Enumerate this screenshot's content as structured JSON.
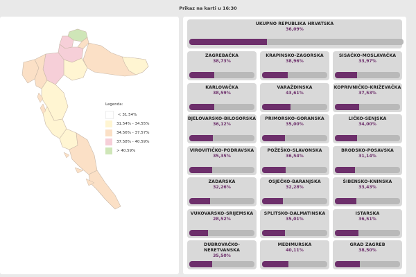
{
  "header": {
    "title": "Prikaz na karti u 16:30"
  },
  "legend": {
    "title": "Legenda:",
    "items": [
      {
        "label": "< 31.54%",
        "color": "#ffffff"
      },
      {
        "label": "31.54% - 34.55%",
        "color": "#fff5d2"
      },
      {
        "label": "34.56% - 37.57%",
        "color": "#fbe0c6"
      },
      {
        "label": "37.58% - 40.59%",
        "color": "#f6cfd8"
      },
      {
        "label": "> 40.59%",
        "color": "#cfe6b8"
      }
    ]
  },
  "total": {
    "name": "UKUPNO REPUBLIKA HRVATSKA",
    "value": "36,09%",
    "percent": 36.09
  },
  "counties": [
    {
      "name": "ZAGREBAČKA",
      "value": "38,73%",
      "percent": 38.73
    },
    {
      "name": "KRAPINSKO-ZAGORSKA",
      "value": "38,96%",
      "percent": 38.96
    },
    {
      "name": "SISAČKO-MOSLAVAČKA",
      "value": "33,97%",
      "percent": 33.97
    },
    {
      "name": "KARLOVAČKA",
      "value": "38,59%",
      "percent": 38.59
    },
    {
      "name": "VARAŽDINSKA",
      "value": "43,61%",
      "percent": 43.61
    },
    {
      "name": "KOPRIVNIČKO-KRIŽEVAČKA",
      "value": "37,53%",
      "percent": 37.53
    },
    {
      "name": "BJELOVARSKO-BILOGORSKA",
      "value": "36,12%",
      "percent": 36.12
    },
    {
      "name": "PRIMORSKO-GORANSKA",
      "value": "35,00%",
      "percent": 35.0
    },
    {
      "name": "LIČKO-SENJSKA",
      "value": "34,00%",
      "percent": 34.0
    },
    {
      "name": "VIROVITIČKO-PODRAVSKA",
      "value": "35,35%",
      "percent": 35.35
    },
    {
      "name": "POŽEŠKO-SLAVONSKA",
      "value": "36,54%",
      "percent": 36.54
    },
    {
      "name": "BRODSKO-POSAVSKA",
      "value": "31,14%",
      "percent": 31.14
    },
    {
      "name": "ZADARSKA",
      "value": "32,26%",
      "percent": 32.26
    },
    {
      "name": "OSJEČKO-BARANJSKA",
      "value": "32,28%",
      "percent": 32.28
    },
    {
      "name": "ŠIBENSKO-KNINSKA",
      "value": "33,43%",
      "percent": 33.43
    },
    {
      "name": "VUKOVARSKO-SRIJEMSKA",
      "value": "28,52%",
      "percent": 28.52
    },
    {
      "name": "SPLITSKO-DALMATINSKA",
      "value": "35,01%",
      "percent": 35.01
    },
    {
      "name": "ISTARSKA",
      "value": "36,51%",
      "percent": 36.51
    },
    {
      "name": "DUBROVAČKO-NERETVANSKA",
      "value": "35,50%",
      "percent": 35.5
    },
    {
      "name": "MEĐIMURSKA",
      "value": "40,11%",
      "percent": 40.11
    },
    {
      "name": "GRAD ZAGREB",
      "value": "38,50%",
      "percent": 38.5
    }
  ]
}
